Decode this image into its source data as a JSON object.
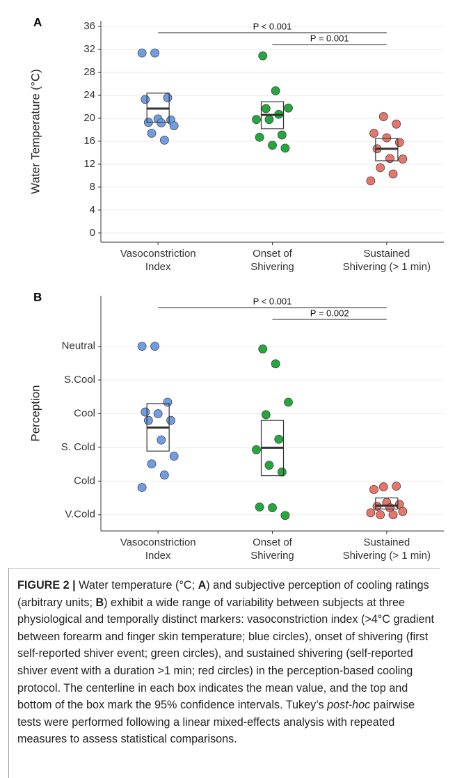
{
  "chart_data": [
    {
      "type": "strip",
      "panel": "A",
      "y_label": "Water Temperature (°C)",
      "categories": [
        [
          "Vasoconstriction",
          "Index"
        ],
        [
          "Onset of",
          "Shivering"
        ],
        [
          "Sustained",
          "Shivering (> 1 min)"
        ]
      ],
      "ylim": [
        -1.6,
        37
      ],
      "yticks": [
        0,
        4,
        8,
        12,
        16,
        20,
        24,
        28,
        32,
        36
      ],
      "grid": true,
      "series": [
        {
          "color": "#6f9de3",
          "values": [
            31.4,
            31.4,
            23.6,
            23.3,
            19.9,
            19.7,
            19.3,
            19.2,
            18.7,
            17.4,
            16.2
          ],
          "mean": 21.7,
          "ci_low": 19.3,
          "ci_high": 24.4
        },
        {
          "color": "#23a83c",
          "values": [
            30.9,
            24.8,
            21.8,
            21.7,
            20.7,
            19.8,
            19.8,
            17.1,
            16.7,
            15.3,
            14.8
          ],
          "mean": 20.6,
          "ci_low": 18.2,
          "ci_high": 22.9
        },
        {
          "color": "#e8756b",
          "values": [
            20.3,
            19.0,
            17.4,
            16.6,
            15.8,
            14.7,
            13.0,
            12.9,
            11.4,
            10.3,
            9.1
          ],
          "mean": 14.7,
          "ci_low": 12.6,
          "ci_high": 16.5
        }
      ],
      "annotations": [
        {
          "text": "P < 0.001",
          "from": 0,
          "to": 2
        },
        {
          "text": "P = 0.001",
          "from": 1,
          "to": 2
        }
      ]
    },
    {
      "type": "strip",
      "panel": "B",
      "y_label": "Perception",
      "categories": [
        [
          "Vasoconstriction",
          "Index"
        ],
        [
          "Onset of",
          "Shivering"
        ],
        [
          "Sustained",
          "Shivering (> 1 min)"
        ]
      ],
      "ylim": [
        0.52,
        7.5
      ],
      "yticks": [
        {
          "value": 1,
          "label": "V.Cold"
        },
        {
          "value": 2,
          "label": "Cold"
        },
        {
          "value": 3,
          "label": "S. Cold"
        },
        {
          "value": 4,
          "label": "Cool"
        },
        {
          "value": 5,
          "label": "S.Cool"
        },
        {
          "value": 6,
          "label": "Neutral"
        }
      ],
      "grid": true,
      "series": [
        {
          "color": "#6f9de3",
          "values": [
            6.0,
            6.0,
            4.34,
            4.05,
            4.0,
            3.8,
            3.8,
            3.22,
            2.74,
            2.51,
            2.18,
            1.81
          ],
          "mean": 3.59,
          "ci_low": 2.89,
          "ci_high": 4.3
        },
        {
          "color": "#23a83c",
          "values": [
            5.92,
            5.48,
            4.34,
            3.97,
            3.24,
            2.93,
            2.47,
            2.27,
            1.23,
            1.21,
            0.98
          ],
          "mean": 2.99,
          "ci_low": 2.16,
          "ci_high": 3.8
        },
        {
          "color": "#e8756b",
          "values": [
            1.83,
            1.85,
            1.75,
            1.37,
            1.31,
            1.25,
            1.21,
            1.1,
            1.0,
            1.0,
            1.06
          ],
          "mean": 1.27,
          "ci_low": 1.17,
          "ci_high": 1.5
        }
      ],
      "annotations": [
        {
          "text": "P < 0.001",
          "from": 0,
          "to": 2
        },
        {
          "text": "P = 0.002",
          "from": 1,
          "to": 2
        }
      ]
    }
  ],
  "caption": {
    "runs": [
      {
        "text": "FIGURE 2 |",
        "bold": true
      },
      {
        "text": " Water temperature (°C; "
      },
      {
        "text": "A",
        "bold": true
      },
      {
        "text": ") and subjective perception of cooling ratings (arbitrary units; "
      },
      {
        "text": "B",
        "bold": true
      },
      {
        "text": ") exhibit a wide range of variability between subjects at three physiological and temporally distinct markers: vasoconstriction index (>4°C gradient between forearm and finger skin temperature; blue circles), onset of shivering (first self-reported shiver event; green circles), and sustained shivering (self-reported shiver event with a duration >1 min; red circles) in the perception-based cooling protocol. The centerline in each box indicates the mean value, and the top and bottom of the box mark the 95% confidence intervals. Tukey’s "
      },
      {
        "text": "post-hoc",
        "italic": true
      },
      {
        "text": " pairwise tests were performed following a linear mixed-effects analysis with repeated measures to assess statistical comparisons."
      }
    ]
  }
}
